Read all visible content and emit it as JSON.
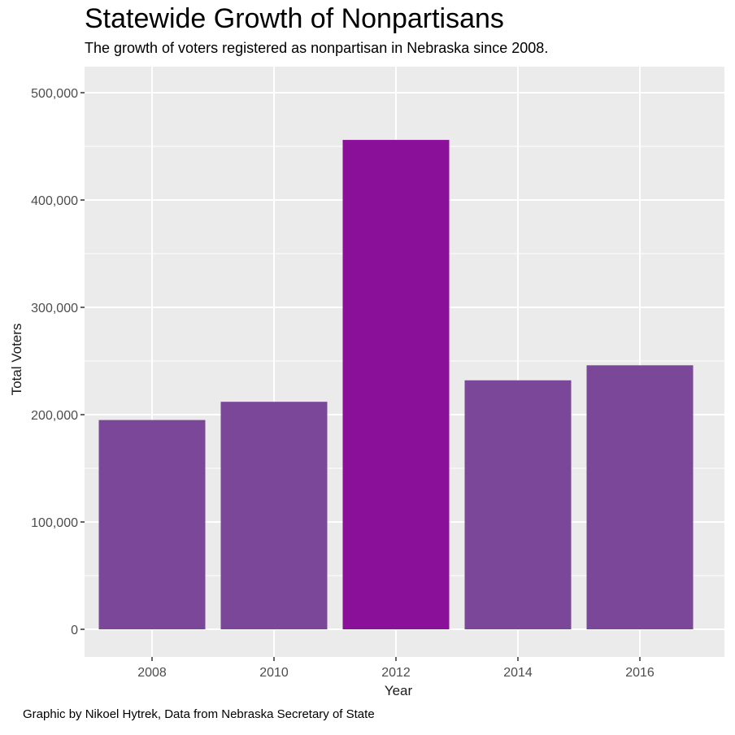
{
  "title": "Statewide Growth of Nonpartisans",
  "subtitle": "The growth of voters registered as nonpartisan in Nebraska since 2008.",
  "caption": "Graphic by Nikoel Hytrek, Data from Nebraska Secretary of State",
  "colors": {
    "panel": "#ebebeb",
    "grid": "#ffffff",
    "bar": "#7b4899",
    "highlight_bar": "#8a0f99"
  },
  "chart_data": {
    "type": "bar",
    "categories": [
      "2008",
      "2010",
      "2012",
      "2014",
      "2016"
    ],
    "values": [
      195000,
      212000,
      456000,
      232000,
      246000
    ],
    "highlight": "2012",
    "xlabel": "Year",
    "ylabel": "Total Voters",
    "ylim": [
      -25000,
      520000
    ],
    "yticks": [
      0,
      100000,
      200000,
      300000,
      400000,
      500000
    ],
    "ytick_labels": [
      "0",
      "100,000",
      "200,000",
      "300,000",
      "400,000",
      "500,000"
    ],
    "grid": true,
    "legend": "none"
  }
}
